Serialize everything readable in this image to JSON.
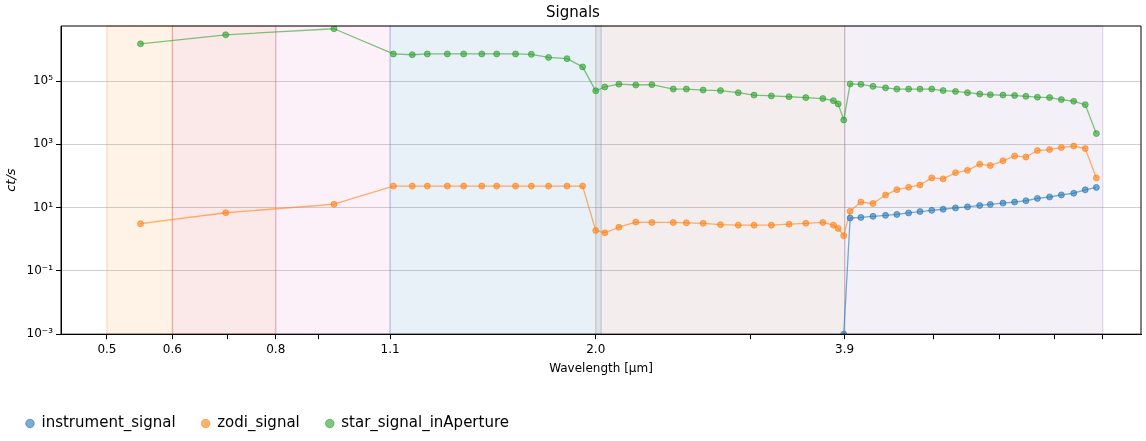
{
  "chart_data": {
    "type": "line",
    "title": "Signals",
    "xlabel": "Wavelength [μm]",
    "ylabel": "ct/s",
    "log": "xy",
    "grid": "y",
    "legend": "bottom",
    "marker": "circle",
    "line_style": "solid",
    "xlim": [
      0.44,
      8.9
    ],
    "ylim": [
      0.001,
      5500000
    ],
    "xticks": [
      0.5,
      0.6,
      {
        "value": 0.7,
        "label": null
      },
      0.8,
      {
        "value": 0.9,
        "label": null
      },
      1.1,
      {
        "value": 1.95,
        "label": "2.0"
      },
      {
        "value": 3,
        "label": null
      },
      3.9,
      {
        "value": 5,
        "label": null
      },
      {
        "value": 6,
        "label": null
      },
      {
        "value": 7,
        "label": null
      },
      {
        "value": 8,
        "label": null
      }
    ],
    "yticks": [
      {
        "value": 0.001,
        "label": "10⁻³"
      },
      {
        "value": 0.1,
        "label": "10⁻¹"
      },
      {
        "value": 10,
        "label": "10¹"
      },
      {
        "value": 1000,
        "label": "10³"
      },
      {
        "value": 100000,
        "label": "10⁵"
      }
    ],
    "bands": [
      {
        "axis": "x",
        "from": 0.5,
        "to": 0.6,
        "color": "#ff7f0e"
      },
      {
        "axis": "x",
        "from": 0.6,
        "to": 0.8,
        "color": "#d62728"
      },
      {
        "axis": "x",
        "from": 0.8,
        "to": 1.1,
        "color": "#e377c2"
      },
      {
        "axis": "x",
        "from": 1.1,
        "to": 1.98,
        "color": "#1f77b4"
      },
      {
        "axis": "x",
        "from": 1.95,
        "to": 3.9,
        "color": "#8c564b"
      },
      {
        "axis": "x",
        "from": 3.9,
        "to": 8.0,
        "color": "#9467bd"
      }
    ],
    "x": [
      0.549,
      0.696,
      0.941,
      1.11,
      1.17,
      1.22,
      1.29,
      1.35,
      1.42,
      1.48,
      1.56,
      1.63,
      1.71,
      1.8,
      1.88,
      1.95,
      2.0,
      2.08,
      2.18,
      2.28,
      2.42,
      2.51,
      2.63,
      2.76,
      2.9,
      3.03,
      3.18,
      3.34,
      3.5,
      3.67,
      3.78,
      3.83,
      3.89,
      3.96,
      4.08,
      4.22,
      4.37,
      4.51,
      4.66,
      4.81,
      4.97,
      5.13,
      5.31,
      5.49,
      5.68,
      5.85,
      6.06,
      6.26,
      6.46,
      6.67,
      6.9,
      7.13,
      7.38,
      7.62,
      7.86
    ],
    "series": [
      {
        "name": "instrument_signal",
        "color": "#1f77b4",
        "x": [
          3.89,
          3.96,
          4.08,
          4.22,
          4.37,
          4.51,
          4.66,
          4.81,
          4.97,
          5.13,
          5.31,
          5.49,
          5.68,
          5.85,
          6.06,
          6.26,
          6.46,
          6.67,
          6.9,
          7.13,
          7.38,
          7.62,
          7.86
        ],
        "values": [
          0.001,
          4.7,
          4.9,
          5.3,
          5.7,
          6.1,
          6.8,
          7.5,
          8.2,
          8.9,
          9.8,
          10.6,
          11.7,
          12.6,
          13.9,
          15.0,
          16.5,
          19.6,
          21.7,
          25.2,
          28.5,
          36.5,
          43.5
        ]
      },
      {
        "name": "zodi_signal",
        "color": "#ff7f0e",
        "values": [
          3.1,
          6.9,
          12.8,
          48,
          48,
          48,
          48,
          48,
          48,
          48,
          48,
          48,
          48,
          48,
          48,
          1.9,
          1.6,
          2.4,
          3.5,
          3.4,
          3.4,
          3.3,
          3.2,
          2.9,
          2.8,
          2.8,
          2.8,
          3.0,
          3.2,
          3.4,
          2.8,
          2.2,
          1.3,
          7.7,
          15,
          13.5,
          25,
          37,
          44,
          52,
          87,
          81,
          127,
          151,
          236,
          213,
          302,
          428,
          397,
          637,
          686,
          796,
          880,
          739,
          87
        ]
      },
      {
        "name": "star_signal_inAperture",
        "color": "#2ca02c",
        "values": [
          1500000,
          2900000,
          4500000,
          720000,
          680000,
          720000,
          720000,
          720000,
          720000,
          720000,
          720000,
          700000,
          560000,
          510000,
          280000,
          49000,
          65000,
          80000,
          75000,
          77000,
          56000,
          56000,
          52000,
          50000,
          43000,
          36000,
          34000,
          32000,
          30000,
          28000,
          24000,
          19000,
          5900,
          81000,
          79000,
          68000,
          61000,
          56000,
          56000,
          56000,
          56000,
          50000,
          47000,
          43000,
          39000,
          37000,
          36000,
          35000,
          33000,
          31000,
          30000,
          26000,
          23000,
          18000,
          2200
        ]
      }
    ]
  }
}
